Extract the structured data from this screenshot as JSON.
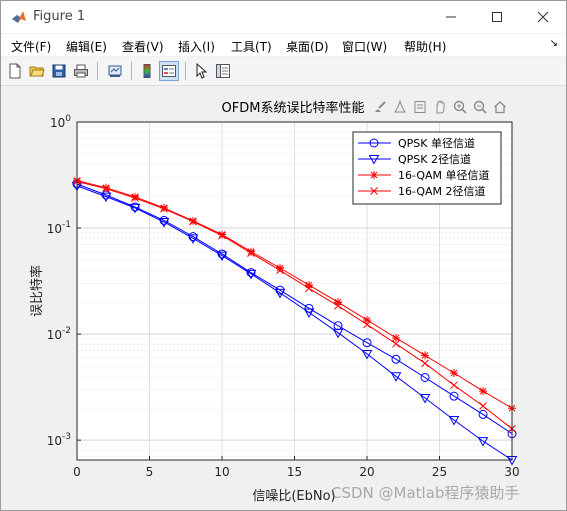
{
  "window": {
    "title": "Figure 1",
    "controls": {
      "minimize": "minimize-icon",
      "maximize": "maximize-icon",
      "close": "close-icon"
    }
  },
  "menu": {
    "items": [
      "文件(F)",
      "编辑(E)",
      "查看(V)",
      "插入(I)",
      "工具(T)",
      "桌面(D)",
      "窗口(W)",
      "帮助(H)"
    ],
    "overflow_arrow": "↘"
  },
  "toolbar": {
    "icons": [
      "new-figure-icon",
      "open-file-icon",
      "save-icon",
      "print-icon",
      "link-icon",
      "colorbar-icon",
      "legend-icon",
      "pointer-icon",
      "property-inspector-icon"
    ]
  },
  "axes_toolbar": {
    "icons": [
      "brush-icon",
      "data-tip-icon",
      "export-icon",
      "pan-icon",
      "zoom-in-icon",
      "zoom-out-icon",
      "home-icon"
    ]
  },
  "watermark": "CSDN @Matlab程序猿助手",
  "chart_data": {
    "type": "line",
    "title": "OFDM系统误比特率性能",
    "xlabel": "信噪比(EbNo)",
    "ylabel": "误比特率",
    "xlim": [
      0,
      30
    ],
    "ylim": [
      0.00065,
      1
    ],
    "yscale": "log",
    "xticks": [
      0,
      5,
      10,
      15,
      20,
      25,
      30
    ],
    "yticks": [
      {
        "value": 1,
        "base": "10",
        "exp": "0"
      },
      {
        "value": 0.1,
        "base": "10",
        "exp": "-1"
      },
      {
        "value": 0.01,
        "base": "10",
        "exp": "-2"
      },
      {
        "value": 0.001,
        "base": "10",
        "exp": "-3"
      }
    ],
    "grid": true,
    "legend_position": "top-right",
    "x": [
      0,
      2,
      4,
      6,
      8,
      10,
      12,
      14,
      16,
      18,
      20,
      22,
      24,
      26,
      28,
      30
    ],
    "series": [
      {
        "name": "QPSK 单径信道",
        "color": "#0000ff",
        "marker": "circle",
        "values": [
          0.26,
          0.205,
          0.158,
          0.118,
          0.083,
          0.057,
          0.038,
          0.026,
          0.0175,
          0.012,
          0.0083,
          0.0058,
          0.0039,
          0.0026,
          0.00175,
          0.00115
        ]
      },
      {
        "name": "QPSK 2径信道",
        "color": "#0000ff",
        "marker": "triangle-down",
        "values": [
          0.25,
          0.198,
          0.155,
          0.114,
          0.08,
          0.055,
          0.037,
          0.0245,
          0.016,
          0.0103,
          0.0065,
          0.004,
          0.0025,
          0.00155,
          0.00098,
          0.00065
        ]
      },
      {
        "name": "16-QAM 单径信道",
        "color": "#ff0000",
        "marker": "asterisk",
        "values": [
          0.28,
          0.24,
          0.197,
          0.155,
          0.117,
          0.087,
          0.06,
          0.042,
          0.029,
          0.02,
          0.0136,
          0.0092,
          0.0063,
          0.0043,
          0.0029,
          0.002
        ]
      },
      {
        "name": "16-QAM 2径信道",
        "color": "#ff0000",
        "marker": "x",
        "values": [
          0.275,
          0.235,
          0.192,
          0.152,
          0.115,
          0.085,
          0.058,
          0.04,
          0.027,
          0.0185,
          0.0123,
          0.0081,
          0.0053,
          0.0033,
          0.0021,
          0.00128
        ]
      }
    ]
  }
}
